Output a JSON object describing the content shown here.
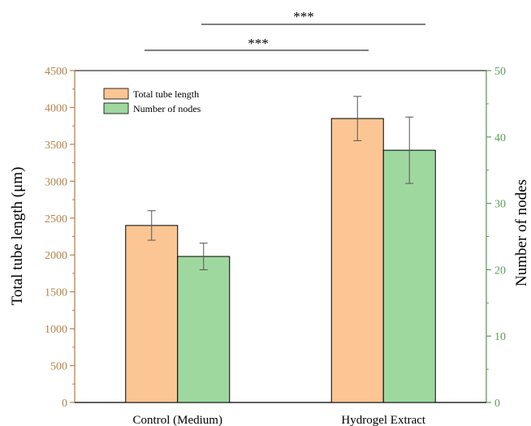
{
  "chart_data": {
    "type": "bar",
    "categories": [
      "Control (Medium)",
      "Hydrogel Extract"
    ],
    "series": [
      {
        "name": "Total tube length",
        "axis": "left",
        "values": [
          2400,
          3850
        ],
        "error": [
          200,
          300
        ],
        "color": "#fbc694"
      },
      {
        "name": "Number of nodes",
        "axis": "right",
        "values": [
          22,
          38
        ],
        "error": [
          2,
          5
        ],
        "color": "#9fd89f"
      }
    ],
    "y_left": {
      "label": "Total tube length (μm)",
      "min": 0,
      "max": 4500,
      "ticks": [
        "0",
        "500",
        "1000",
        "1500",
        "2000",
        "2500",
        "3000",
        "3500",
        "4000",
        "4500"
      ],
      "color": "#b5834a"
    },
    "y_right": {
      "label": "Number of nodes",
      "min": 0,
      "max": 50,
      "ticks": [
        "0",
        "10",
        "20",
        "30",
        "40",
        "50"
      ],
      "color": "#5a9e5a"
    },
    "significance": [
      {
        "label": "***",
        "level": "upper"
      },
      {
        "label": "***",
        "level": "lower"
      }
    ],
    "legend_position": "top-left",
    "grid": false
  }
}
